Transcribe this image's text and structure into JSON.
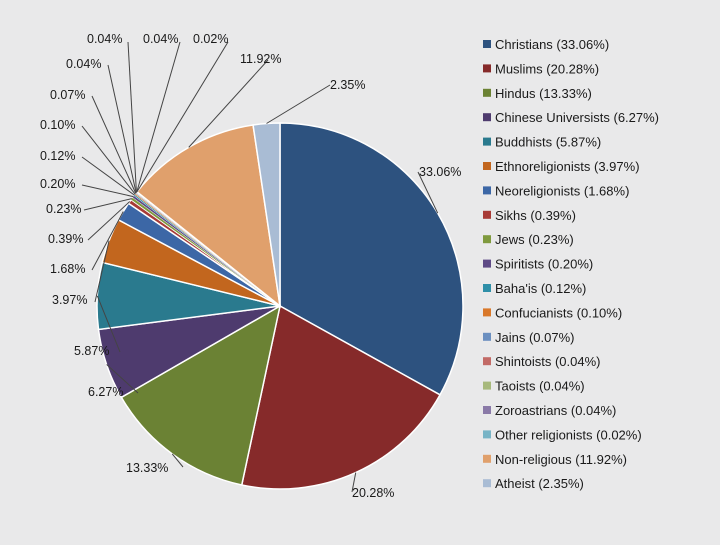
{
  "chart_data": {
    "type": "pie",
    "title": "",
    "legend_position": "right",
    "slices": [
      {
        "name": "Christians",
        "value": 33.06,
        "label": "33.06%",
        "legend": "Christians (33.06%)",
        "color": "#2d527f"
      },
      {
        "name": "Muslims",
        "value": 20.28,
        "label": "20.28%",
        "legend": "Muslims (20.28%)",
        "color": "#862a2a"
      },
      {
        "name": "Hindus",
        "value": 13.33,
        "label": "13.33%",
        "legend": "Hindus (13.33%)",
        "color": "#6b8234"
      },
      {
        "name": "Chinese Universists",
        "value": 6.27,
        "label": "6.27%",
        "legend": "Chinese Universists (6.27%)",
        "color": "#4e3b6e"
      },
      {
        "name": "Buddhists",
        "value": 5.87,
        "label": "5.87%",
        "legend": "Buddhists (5.87%)",
        "color": "#2a7a8e"
      },
      {
        "name": "Ethnoreligionists",
        "value": 3.97,
        "label": "3.97%",
        "legend": "Ethnoreligionists (3.97%)",
        "color": "#c2661e"
      },
      {
        "name": "Neoreligionists",
        "value": 1.68,
        "label": "1.68%",
        "legend": "Neoreligionists (1.68%)",
        "color": "#3c67a6"
      },
      {
        "name": "Sikhs",
        "value": 0.39,
        "label": "0.39%",
        "legend": "Sikhs (0.39%)",
        "color": "#a83a36"
      },
      {
        "name": "Jews",
        "value": 0.23,
        "label": "0.23%",
        "legend": "Jews (0.23%)",
        "color": "#7f9a3e"
      },
      {
        "name": "Spiritists",
        "value": 0.2,
        "label": "0.20%",
        "legend": "Spiritists (0.20%)",
        "color": "#5e4a86"
      },
      {
        "name": "Baha'is",
        "value": 0.12,
        "label": "0.12%",
        "legend": "Baha'is (0.12%)",
        "color": "#2f8fa8"
      },
      {
        "name": "Confucianists",
        "value": 0.1,
        "label": "0.10%",
        "legend": "Confucianists (0.10%)",
        "color": "#d9782a"
      },
      {
        "name": "Jains",
        "value": 0.07,
        "label": "0.07%",
        "legend": "Jains (0.07%)",
        "color": "#6b8fc0"
      },
      {
        "name": "Shintoists",
        "value": 0.04,
        "label": "0.04%",
        "legend": "Shintoists (0.04%)",
        "color": "#c26a66"
      },
      {
        "name": "Taoists",
        "value": 0.04,
        "label": "0.04%",
        "legend": "Taoists (0.04%)",
        "color": "#a7b97c"
      },
      {
        "name": "Zoroastrians",
        "value": 0.04,
        "label": "0.04%",
        "legend": "Zoroastrians (0.04%)",
        "color": "#8a7aa8"
      },
      {
        "name": "Other religionists",
        "value": 0.02,
        "label": "0.02%",
        "legend": "Other religionists (0.02%)",
        "color": "#78b4c6"
      },
      {
        "name": "Non-religious",
        "value": 11.92,
        "label": "11.92%",
        "legend": "Non-religious (11.92%)",
        "color": "#e0a06c"
      },
      {
        "name": "Atheist",
        "value": 2.35,
        "label": "2.35%",
        "legend": "Atheist (2.35%)",
        "color": "#a9bcd4"
      }
    ]
  }
}
